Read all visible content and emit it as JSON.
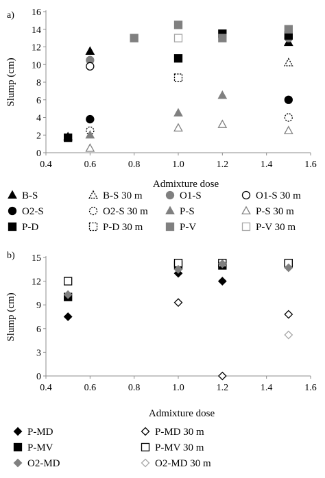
{
  "colors": {
    "black": "#000000",
    "dark_gray": "#808080",
    "light_gray": "#a6a6a6",
    "white": "#ffffff"
  },
  "chart_data": [
    {
      "type": "scatter",
      "panel_label": "a)",
      "xlabel": "Admixture dose",
      "ylabel": "Slump (cm)",
      "xlim": [
        0.4,
        1.6
      ],
      "ylim": [
        0,
        16
      ],
      "x_ticks": [
        "0.4",
        "0.6",
        "0.8",
        "1.0",
        "1.2",
        "1.4",
        "1.6"
      ],
      "y_ticks": [
        "0",
        "2",
        "4",
        "6",
        "8",
        "10",
        "12",
        "14",
        "16"
      ],
      "grid": false,
      "legend_position": "bottom",
      "series": [
        {
          "name": "B-S",
          "marker": "triangle",
          "fill": "#000000",
          "stroke": "#000000",
          "dashed": false,
          "points": [
            [
              0.5,
              1.8
            ],
            [
              0.6,
              11.5
            ],
            [
              1.5,
              12.5
            ]
          ]
        },
        {
          "name": "B-S 30 m",
          "marker": "triangle",
          "fill": "#ffffff",
          "stroke": "#000000",
          "dashed": true,
          "points": [
            [
              1.5,
              10.2
            ]
          ]
        },
        {
          "name": "O1-S",
          "marker": "circle",
          "fill": "#808080",
          "stroke": "#808080",
          "dashed": false,
          "points": [
            [
              0.6,
              10.5
            ],
            [
              1.2,
              13.2
            ],
            [
              1.5,
              13.0
            ]
          ]
        },
        {
          "name": "O1-S 30 m",
          "marker": "circle",
          "fill": "#ffffff",
          "stroke": "#000000",
          "dashed": false,
          "points": [
            [
              0.6,
              9.8
            ]
          ]
        },
        {
          "name": "O2-S",
          "marker": "circle",
          "fill": "#000000",
          "stroke": "#000000",
          "dashed": false,
          "points": [
            [
              0.6,
              3.8
            ],
            [
              1.5,
              6.0
            ]
          ]
        },
        {
          "name": "O2-S 30 m",
          "marker": "circle",
          "fill": "#ffffff",
          "stroke": "#000000",
          "dashed": true,
          "points": [
            [
              0.6,
              2.5
            ],
            [
              1.5,
              4.0
            ]
          ]
        },
        {
          "name": "P-S",
          "marker": "triangle",
          "fill": "#808080",
          "stroke": "#808080",
          "dashed": false,
          "points": [
            [
              0.6,
              2.0
            ],
            [
              1.0,
              4.5
            ],
            [
              1.2,
              6.5
            ]
          ]
        },
        {
          "name": "P-S 30 m",
          "marker": "triangle",
          "fill": "#ffffff",
          "stroke": "#808080",
          "dashed": false,
          "points": [
            [
              0.6,
              0.5
            ],
            [
              1.0,
              2.8
            ],
            [
              1.2,
              3.2
            ],
            [
              1.5,
              2.5
            ]
          ]
        },
        {
          "name": "P-D",
          "marker": "square",
          "fill": "#000000",
          "stroke": "#000000",
          "dashed": false,
          "points": [
            [
              0.5,
              1.7
            ],
            [
              1.0,
              10.7
            ],
            [
              1.2,
              13.5
            ],
            [
              1.5,
              13.3
            ]
          ]
        },
        {
          "name": "P-D 30 m",
          "marker": "square",
          "fill": "#ffffff",
          "stroke": "#000000",
          "dashed": true,
          "points": [
            [
              1.0,
              8.5
            ]
          ]
        },
        {
          "name": "P-V",
          "marker": "square",
          "fill": "#808080",
          "stroke": "#808080",
          "dashed": false,
          "points": [
            [
              0.8,
              13.0
            ],
            [
              1.0,
              14.5
            ],
            [
              1.2,
              13.0
            ],
            [
              1.5,
              14.0
            ]
          ]
        },
        {
          "name": "P-V 30 m",
          "marker": "square",
          "fill": "#ffffff",
          "stroke": "#a6a6a6",
          "dashed": false,
          "points": [
            [
              1.0,
              13.0
            ]
          ]
        }
      ]
    },
    {
      "type": "scatter",
      "panel_label": "b)",
      "xlabel": "Admixture dose",
      "ylabel": "Slump (cm)",
      "xlim": [
        0.4,
        1.6
      ],
      "ylim": [
        0,
        15
      ],
      "x_ticks": [
        "0.4",
        "0.6",
        "0.8",
        "1.0",
        "1.2",
        "1.4",
        "1.6"
      ],
      "y_ticks": [
        "0",
        "3",
        "6",
        "9",
        "12",
        "15"
      ],
      "grid": false,
      "legend_position": "bottom",
      "series": [
        {
          "name": "P-MD",
          "marker": "diamond",
          "fill": "#000000",
          "stroke": "#000000",
          "dashed": false,
          "points": [
            [
              0.5,
              7.5
            ],
            [
              1.0,
              13.0
            ],
            [
              1.2,
              12.0
            ],
            [
              1.5,
              14.0
            ]
          ]
        },
        {
          "name": "P-MD 30 m",
          "marker": "diamond",
          "fill": "#ffffff",
          "stroke": "#000000",
          "dashed": false,
          "points": [
            [
              1.0,
              9.3
            ],
            [
              1.2,
              0.0
            ],
            [
              1.5,
              7.8
            ]
          ]
        },
        {
          "name": "P-MV",
          "marker": "square",
          "fill": "#000000",
          "stroke": "#000000",
          "dashed": false,
          "points": [
            [
              0.5,
              10.0
            ],
            [
              1.0,
              14.0
            ],
            [
              1.2,
              14.0
            ],
            [
              1.5,
              14.2
            ]
          ]
        },
        {
          "name": "P-MV 30 m",
          "marker": "square",
          "fill": "#ffffff",
          "stroke": "#000000",
          "dashed": false,
          "points": [
            [
              0.5,
              12.0
            ],
            [
              1.0,
              14.3
            ],
            [
              1.2,
              14.3
            ],
            [
              1.5,
              14.3
            ]
          ]
        },
        {
          "name": "O2-MD",
          "marker": "diamond",
          "fill": "#808080",
          "stroke": "#808080",
          "dashed": false,
          "points": [
            [
              0.5,
              10.3
            ],
            [
              1.0,
              13.5
            ],
            [
              1.2,
              14.2
            ],
            [
              1.5,
              13.7
            ]
          ]
        },
        {
          "name": "O2-MD 30 m",
          "marker": "diamond",
          "fill": "#ffffff",
          "stroke": "#a6a6a6",
          "dashed": false,
          "points": [
            [
              1.5,
              5.2
            ]
          ]
        }
      ]
    }
  ]
}
